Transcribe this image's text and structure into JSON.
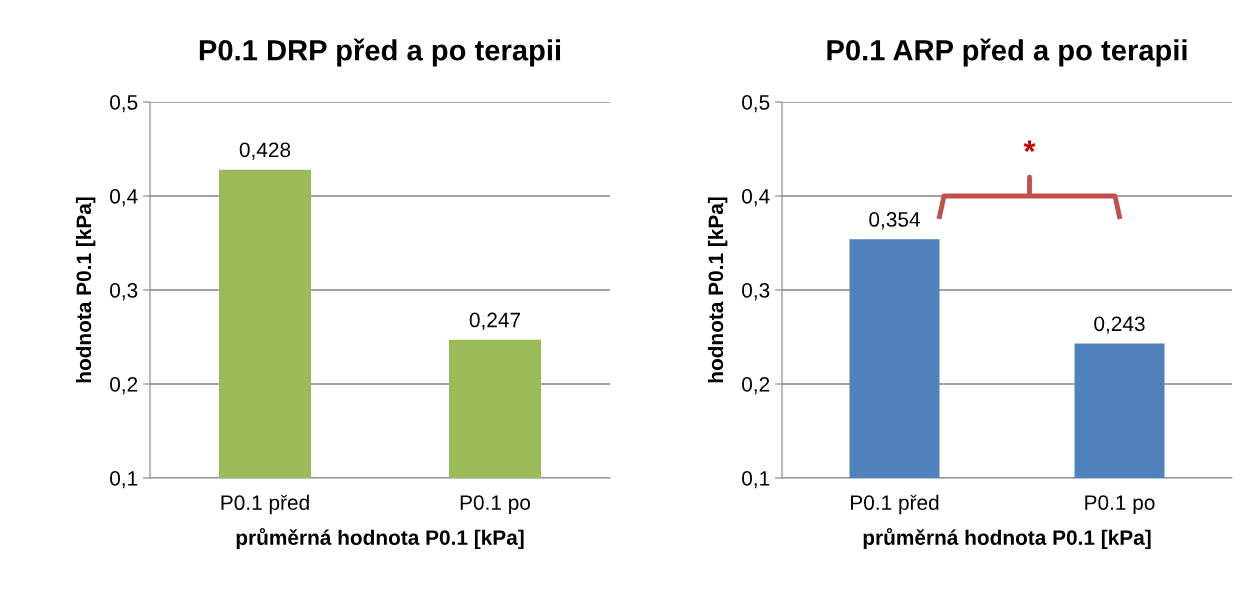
{
  "chart_data": [
    {
      "type": "bar",
      "title": "P0.1 DRP před a po terapii",
      "xlabel": "průměrná hodnota P0.1 [kPa]",
      "ylabel": "hodnota P0.1 [kPa]",
      "categories": [
        "P0.1 před",
        "P0.1 po"
      ],
      "values": [
        0.428,
        0.247
      ],
      "value_labels": [
        "0,428",
        "0,247"
      ],
      "color": "#9bbb59",
      "ylim": [
        0.1,
        0.5
      ],
      "yticks": [
        {
          "value": 0.1,
          "label": "0,1"
        },
        {
          "value": 0.2,
          "label": "0,2"
        },
        {
          "value": 0.3,
          "label": "0,3"
        },
        {
          "value": 0.4,
          "label": "0,4"
        },
        {
          "value": 0.5,
          "label": "0,5"
        }
      ],
      "grid": "y"
    },
    {
      "type": "bar",
      "title": "P0.1 ARP před a po terapii",
      "xlabel": "průměrná hodnota P0.1 [kPa]",
      "ylabel": "hodnota P0.1 [kPa]",
      "categories": [
        "P0.1 před",
        "P0.1 po"
      ],
      "values": [
        0.354,
        0.243
      ],
      "value_labels": [
        "0,354",
        "0,243"
      ],
      "color": "#4f81bd",
      "ylim": [
        0.1,
        0.5
      ],
      "yticks": [
        {
          "value": 0.1,
          "label": "0,1"
        },
        {
          "value": 0.2,
          "label": "0,2"
        },
        {
          "value": 0.3,
          "label": "0,3"
        },
        {
          "value": 0.4,
          "label": "0,4"
        },
        {
          "value": 0.5,
          "label": "0,5"
        }
      ],
      "grid": "y",
      "annotations": [
        "*"
      ]
    }
  ]
}
